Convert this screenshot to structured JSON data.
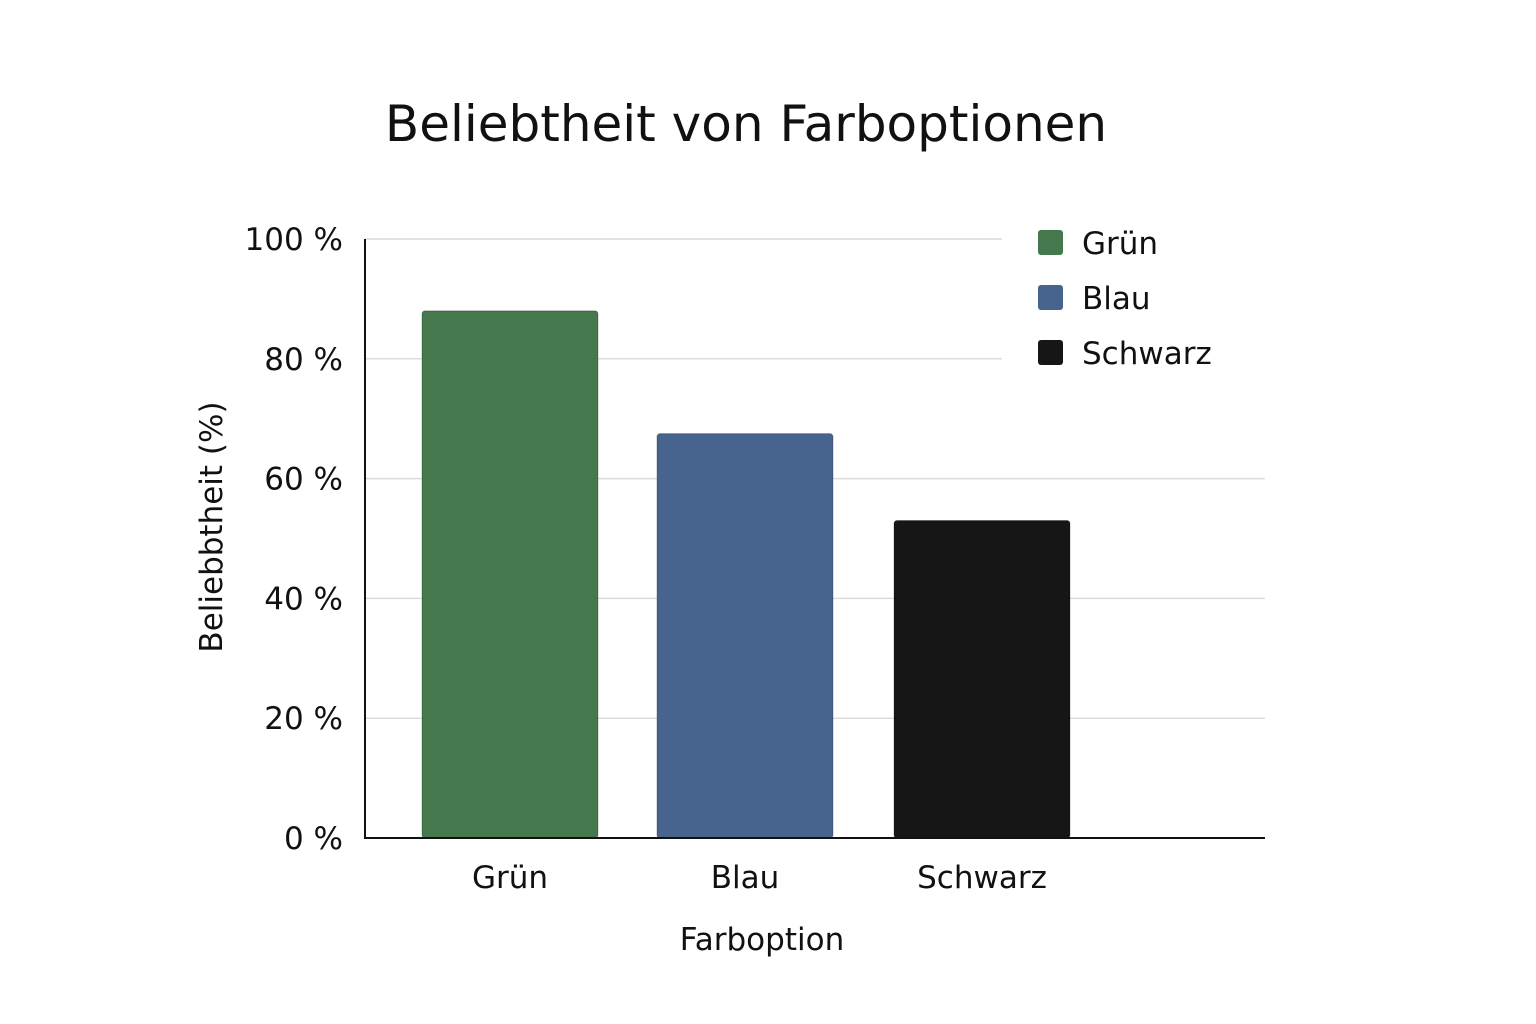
{
  "chart_data": {
    "type": "bar",
    "title": "Beliebtheit von Farboptionen",
    "xlabel": "Farboption",
    "ylabel": "Beliebbtheit (%)",
    "categories": [
      "Grün",
      "Blau",
      "Schwarz"
    ],
    "values": [
      88,
      67.5,
      53
    ],
    "colors": [
      "#46784d",
      "#47648f",
      "#161616"
    ],
    "ylim": [
      0,
      100
    ],
    "yticks": [
      0,
      20,
      40,
      60,
      80,
      100
    ],
    "ytick_labels": [
      "0 %",
      "20 %",
      "40 %",
      "60 %",
      "80 %",
      "100 %"
    ],
    "grid": true,
    "legend": {
      "placement": "top-right",
      "entries": [
        "Grün",
        "Blau",
        "Schwarz"
      ]
    }
  }
}
